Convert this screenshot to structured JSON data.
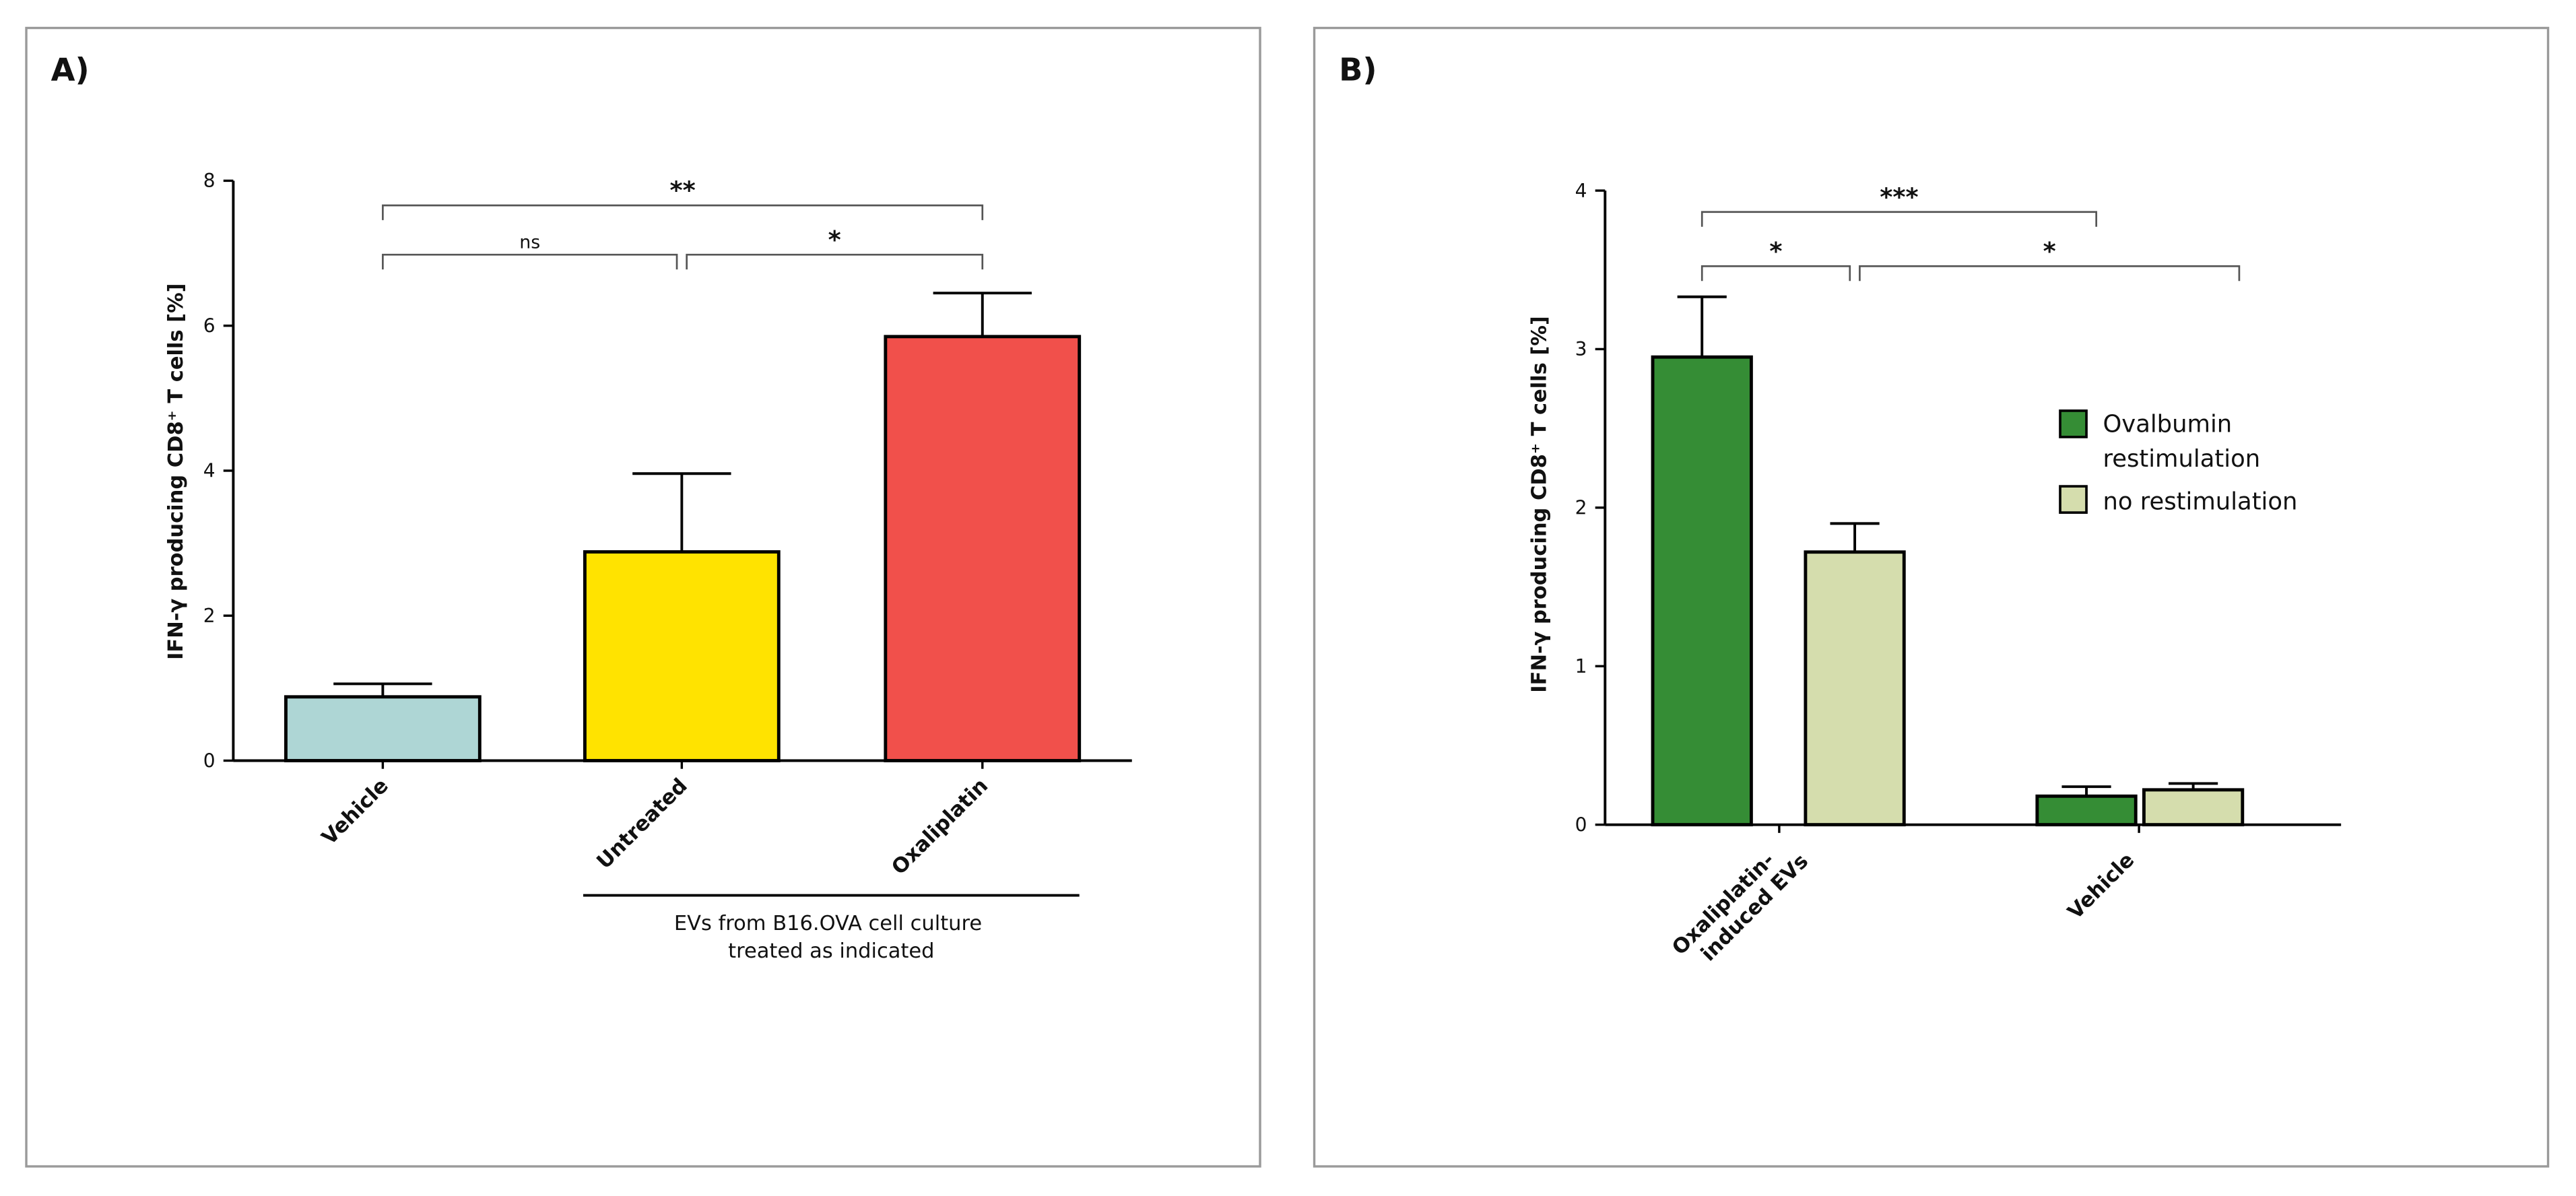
{
  "chart_data": [
    {
      "panel": "A)",
      "type": "bar",
      "title": "",
      "xlabel": "",
      "ylabel": "IFN-γ producing CD8⁺ T cells [%]",
      "ylim": [
        0,
        8
      ],
      "yticks": [
        0,
        2,
        4,
        6,
        8
      ],
      "grid": false,
      "categories": [
        "Vehicle",
        "Untreated",
        "Oxaliplatin"
      ],
      "values": [
        0.88,
        2.88,
        5.85
      ],
      "errors": [
        0.18,
        1.08,
        0.6
      ],
      "colors": [
        "#aed6d5",
        "#ffe300",
        "#f1504b"
      ],
      "group_annotation": "EVs from B16.OVA cell culture treated as indicated",
      "group_annotation_lines": [
        "EVs from B16.OVA cell culture",
        "treated as indicated"
      ],
      "significance": [
        {
          "from": "Vehicle",
          "to": "Untreated",
          "label": "ns"
        },
        {
          "from": "Untreated",
          "to": "Oxaliplatin",
          "label": "*"
        },
        {
          "from": "Vehicle",
          "to": "Oxaliplatin",
          "label": "**"
        }
      ]
    },
    {
      "panel": "B)",
      "type": "bar",
      "title": "",
      "xlabel": "",
      "ylabel": "IFN-γ producing CD8⁺ T cells [%]",
      "ylim": [
        0,
        4
      ],
      "yticks": [
        0,
        1,
        2,
        3,
        4
      ],
      "grid": false,
      "categories": [
        "Oxaliplatin-induced EVs",
        "Vehicle"
      ],
      "category_label_lines": [
        [
          "Oxaliplatin-",
          "induced EVs"
        ],
        [
          "Vehicle"
        ]
      ],
      "series": [
        {
          "name": "Ovalbumin restimulation",
          "legend_lines": [
            "Ovalbumin",
            "restimulation"
          ],
          "color": "#358d35",
          "values": [
            2.95,
            0.18
          ],
          "errors": [
            0.38,
            0.06
          ]
        },
        {
          "name": "no restimulation",
          "legend_lines": [
            "no restimulation"
          ],
          "color": "#d5ddad",
          "values": [
            1.72,
            0.22
          ],
          "errors": [
            0.18,
            0.04
          ]
        }
      ],
      "legend_position": "right",
      "significance": [
        {
          "label": "*",
          "between": "Oxaliplatin-induced EVs: Ovalbumin restimulation vs no restimulation"
        },
        {
          "label": "*",
          "between": "Oxaliplatin-induced EVs no restimulation vs Vehicle no restimulation"
        },
        {
          "label": "***",
          "between": "Oxaliplatin-induced EVs Ovalbumin restimulation vs Vehicle Ovalbumin restimulation"
        }
      ]
    }
  ]
}
